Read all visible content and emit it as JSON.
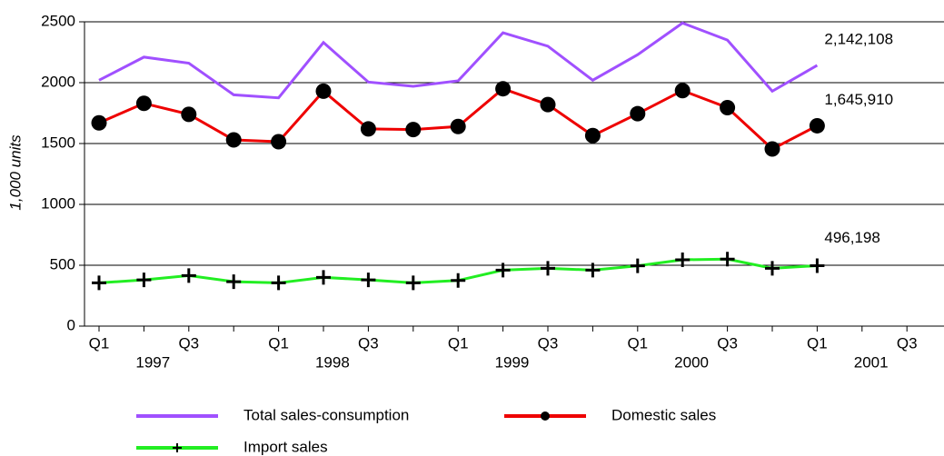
{
  "chart_data": {
    "type": "line",
    "y_label": "1,000 units",
    "categories": [
      "Q1",
      null,
      "Q3",
      null,
      "Q1",
      null,
      "Q3",
      null,
      "Q1",
      null,
      "Q3",
      null,
      "Q1",
      null,
      "Q3",
      null,
      "Q1",
      null,
      "Q3"
    ],
    "years": [
      "1997",
      null,
      null,
      null,
      "1998",
      null,
      null,
      null,
      "1999",
      null,
      null,
      null,
      "2000",
      null,
      null,
      null,
      "2001",
      null,
      null
    ],
    "ylim": [
      0,
      2500
    ],
    "yticks": [
      0,
      500,
      1000,
      1500,
      2000,
      2500
    ],
    "grid": true,
    "series": [
      {
        "name": "Total sales-consumption",
        "color": "#a050ff",
        "marker": "none",
        "values": [
          2020,
          2210,
          2160,
          1900,
          1875,
          2330,
          2005,
          1970,
          2015,
          2410,
          2300,
          2020,
          2230,
          2490,
          2350,
          1930,
          2142.108,
          null,
          null
        ],
        "value_labels": [
          null,
          null,
          null,
          null,
          null,
          null,
          null,
          null,
          null,
          null,
          null,
          null,
          null,
          null,
          null,
          null,
          "2,142,108",
          null,
          null
        ]
      },
      {
        "name": "Domestic sales",
        "color": "#ee0000",
        "marker": "circle",
        "values": [
          1670,
          1830,
          1740,
          1530,
          1515,
          1930,
          1620,
          1615,
          1640,
          1950,
          1820,
          1565,
          1745,
          1935,
          1795,
          1455,
          1645.91,
          null,
          null
        ],
        "value_labels": [
          null,
          null,
          null,
          null,
          null,
          null,
          null,
          null,
          null,
          null,
          null,
          null,
          null,
          null,
          null,
          null,
          "1,645,910",
          null,
          null
        ]
      },
      {
        "name": "Import sales",
        "color": "#22ee22",
        "marker": "plus",
        "values": [
          355,
          380,
          415,
          365,
          355,
          400,
          380,
          355,
          375,
          460,
          475,
          460,
          495,
          545,
          550,
          475,
          496.198,
          null,
          null
        ],
        "value_labels": [
          null,
          null,
          null,
          null,
          null,
          null,
          null,
          null,
          null,
          null,
          null,
          null,
          null,
          null,
          null,
          null,
          "496,198",
          null,
          null
        ]
      }
    ]
  }
}
